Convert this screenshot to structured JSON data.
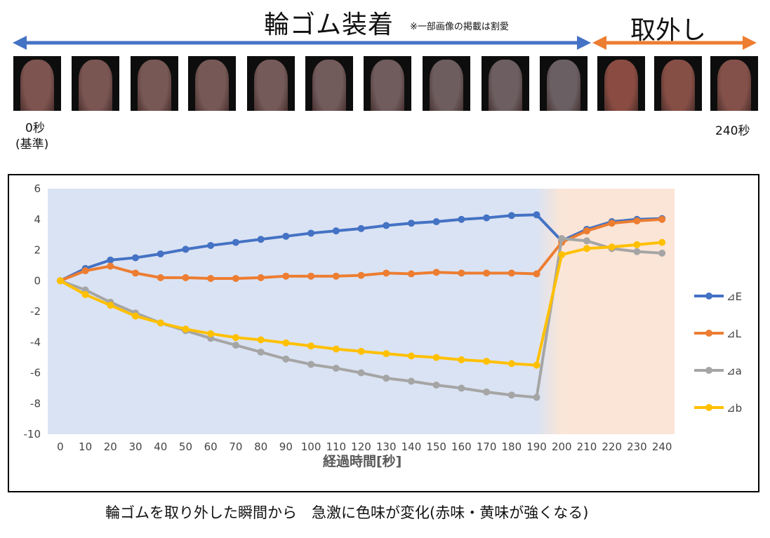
{
  "header": {
    "wear_title": "輪ゴム装着",
    "note": "※一部画像の掲載は割愛",
    "remove_title": "取外し",
    "wear_color": "#4472C4",
    "remove_color": "#ED7D31"
  },
  "thumbnails": [
    {
      "name": "finger-photo-1",
      "color": "#7e5450"
    },
    {
      "name": "finger-photo-2",
      "color": "#7a5653"
    },
    {
      "name": "finger-photo-3",
      "color": "#785855"
    },
    {
      "name": "finger-photo-4",
      "color": "#765957"
    },
    {
      "name": "finger-photo-5",
      "color": "#745a59"
    },
    {
      "name": "finger-photo-6",
      "color": "#725b5b"
    },
    {
      "name": "finger-photo-7",
      "color": "#705c5d"
    },
    {
      "name": "finger-photo-8",
      "color": "#6e5d5f"
    },
    {
      "name": "finger-photo-9",
      "color": "#6c5e61"
    },
    {
      "name": "finger-photo-10",
      "color": "#6a5f63"
    },
    {
      "name": "finger-photo-11",
      "color": "#8a4c42"
    },
    {
      "name": "finger-photo-12",
      "color": "#864f46"
    },
    {
      "name": "finger-photo-13",
      "color": "#84514a"
    }
  ],
  "time_labels": {
    "start": "0秒",
    "start_sub": "(基準)",
    "end": "240秒"
  },
  "caption": "輪ゴムを取り外した瞬間から　急激に色味が変化(赤味・黄味が強くなる)",
  "chart_data": {
    "type": "line",
    "x": [
      0,
      10,
      20,
      30,
      40,
      50,
      60,
      70,
      80,
      90,
      100,
      110,
      120,
      130,
      140,
      150,
      160,
      170,
      180,
      190,
      200,
      210,
      220,
      230,
      240
    ],
    "xlabel": "経過時間[秒]",
    "ylabel": "",
    "ylim": [
      -10,
      6
    ],
    "yticks": [
      6,
      4,
      2,
      0,
      -2,
      -4,
      -6,
      -8,
      -10
    ],
    "grid": false,
    "legend_position": "right",
    "background_regions": [
      {
        "from": -5,
        "to": 190,
        "color": "#DAE3F3"
      },
      {
        "from": 200,
        "to": 245,
        "color": "#FBE5D6"
      }
    ],
    "series": [
      {
        "name": "⊿E",
        "color": "#4472C4",
        "values": [
          0,
          0.8,
          1.35,
          1.5,
          1.75,
          2.05,
          2.3,
          2.5,
          2.7,
          2.9,
          3.1,
          3.25,
          3.4,
          3.6,
          3.75,
          3.85,
          4.0,
          4.1,
          4.25,
          4.3,
          2.6,
          3.35,
          3.85,
          4.0,
          4.05
        ]
      },
      {
        "name": "⊿L",
        "color": "#ED7D31",
        "values": [
          0,
          0.65,
          0.95,
          0.5,
          0.2,
          0.2,
          0.15,
          0.15,
          0.2,
          0.3,
          0.3,
          0.3,
          0.35,
          0.5,
          0.45,
          0.55,
          0.5,
          0.5,
          0.5,
          0.45,
          2.5,
          3.25,
          3.75,
          3.9,
          4.0
        ]
      },
      {
        "name": "⊿a",
        "color": "#A5A5A5",
        "values": [
          0,
          -0.6,
          -1.4,
          -2.1,
          -2.75,
          -3.25,
          -3.75,
          -4.2,
          -4.65,
          -5.1,
          -5.45,
          -5.7,
          -6.0,
          -6.35,
          -6.55,
          -6.8,
          -7.0,
          -7.25,
          -7.45,
          -7.6,
          2.75,
          2.6,
          2.1,
          1.9,
          1.8
        ]
      },
      {
        "name": "⊿b",
        "color": "#FFC000",
        "values": [
          0,
          -0.9,
          -1.6,
          -2.3,
          -2.75,
          -3.15,
          -3.45,
          -3.7,
          -3.85,
          -4.05,
          -4.25,
          -4.45,
          -4.6,
          -4.75,
          -4.9,
          -5.0,
          -5.15,
          -5.25,
          -5.4,
          -5.5,
          1.7,
          2.1,
          2.2,
          2.35,
          2.5
        ]
      }
    ]
  }
}
